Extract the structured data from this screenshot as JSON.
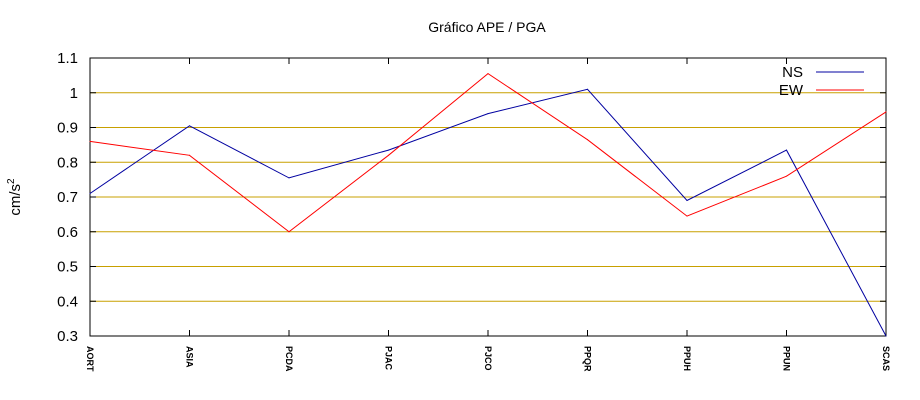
{
  "chart_data": {
    "type": "line",
    "title": "Gráfico  APE / PGA",
    "xlabel": "",
    "ylabel": "cm/s",
    "ylabel_superscript": "2",
    "categories": [
      "AORT",
      "ASIA",
      "PCDA",
      "PJAC",
      "PJCO",
      "PPQR",
      "PPUH",
      "PPUN",
      "SCAS"
    ],
    "series": [
      {
        "name": "NS",
        "color": "#0000a0",
        "values": [
          0.71,
          0.905,
          0.755,
          0.835,
          0.94,
          1.01,
          0.69,
          0.835,
          0.3
        ]
      },
      {
        "name": "EW",
        "color": "#ff0000",
        "values": [
          0.86,
          0.82,
          0.6,
          0.82,
          1.055,
          0.865,
          0.645,
          0.76,
          0.945
        ]
      }
    ],
    "ylim": [
      0.3,
      1.1
    ],
    "yticks": [
      "0.3",
      "0.4",
      "0.5",
      "0.6",
      "0.7",
      "0.8",
      "0.9",
      "1",
      "1.1"
    ],
    "grid": "horizontal",
    "grid_color": "#c8a000",
    "legend_position": "top-right"
  }
}
